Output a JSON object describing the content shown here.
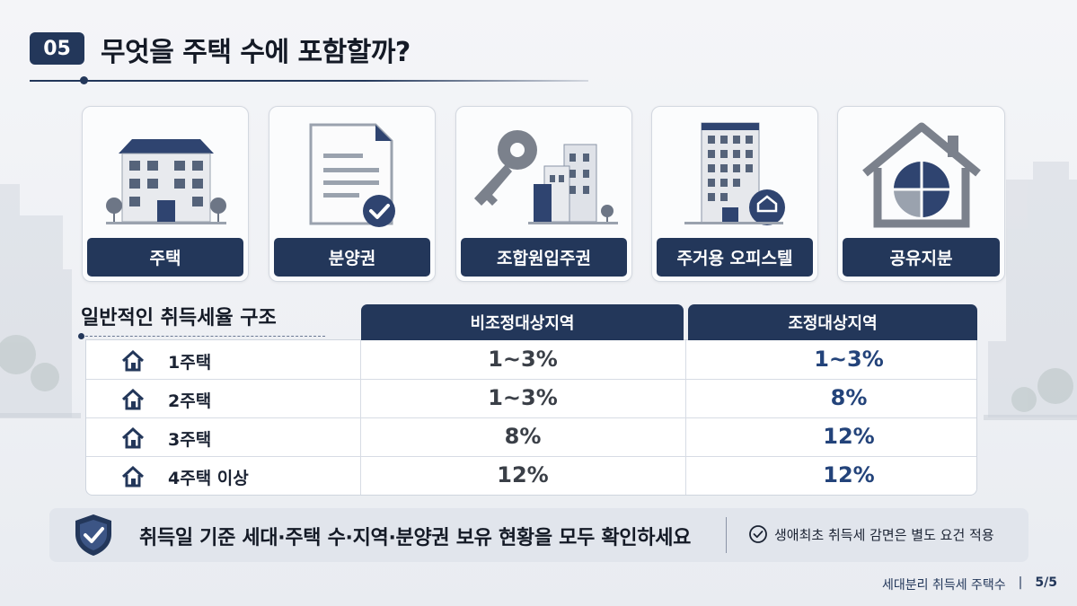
{
  "header": {
    "number": "05",
    "title": "무엇을 주택 수에 포함할까?"
  },
  "categories": [
    {
      "label": "주택",
      "icon": "apartment-building-icon"
    },
    {
      "label": "분양권",
      "icon": "document-check-icon"
    },
    {
      "label": "조합원입주권",
      "icon": "key-buildings-icon"
    },
    {
      "label": "주거용 오피스텔",
      "icon": "officetel-icon"
    },
    {
      "label": "공유지분",
      "icon": "house-pie-icon"
    }
  ],
  "table": {
    "title": "일반적인 취득세율 구조",
    "columns": [
      "비조정대상지역",
      "조정대상지역"
    ],
    "rows": [
      {
        "label": "1주택",
        "non_adjusted": "1~3%",
        "adjusted": "1~3%"
      },
      {
        "label": "2주택",
        "non_adjusted": "1~3%",
        "adjusted": "8%"
      },
      {
        "label": "3주택",
        "non_adjusted": "8%",
        "adjusted": "12%"
      },
      {
        "label": "4주택 이상",
        "non_adjusted": "12%",
        "adjusted": "12%"
      }
    ]
  },
  "banner": {
    "main": "취득일 기준 세대·주택 수·지역·분양권 보유 현황을 모두 확인하세요",
    "note": "생애최초 취득세 감면은 별도 요건 적용"
  },
  "footer": {
    "title": "세대분리 취득세 주택수",
    "separator": "|",
    "page": "5/5"
  },
  "colors": {
    "navy": "#23375a",
    "accent_blue": "#23437a",
    "banner_bg": "#e1e5ec"
  }
}
